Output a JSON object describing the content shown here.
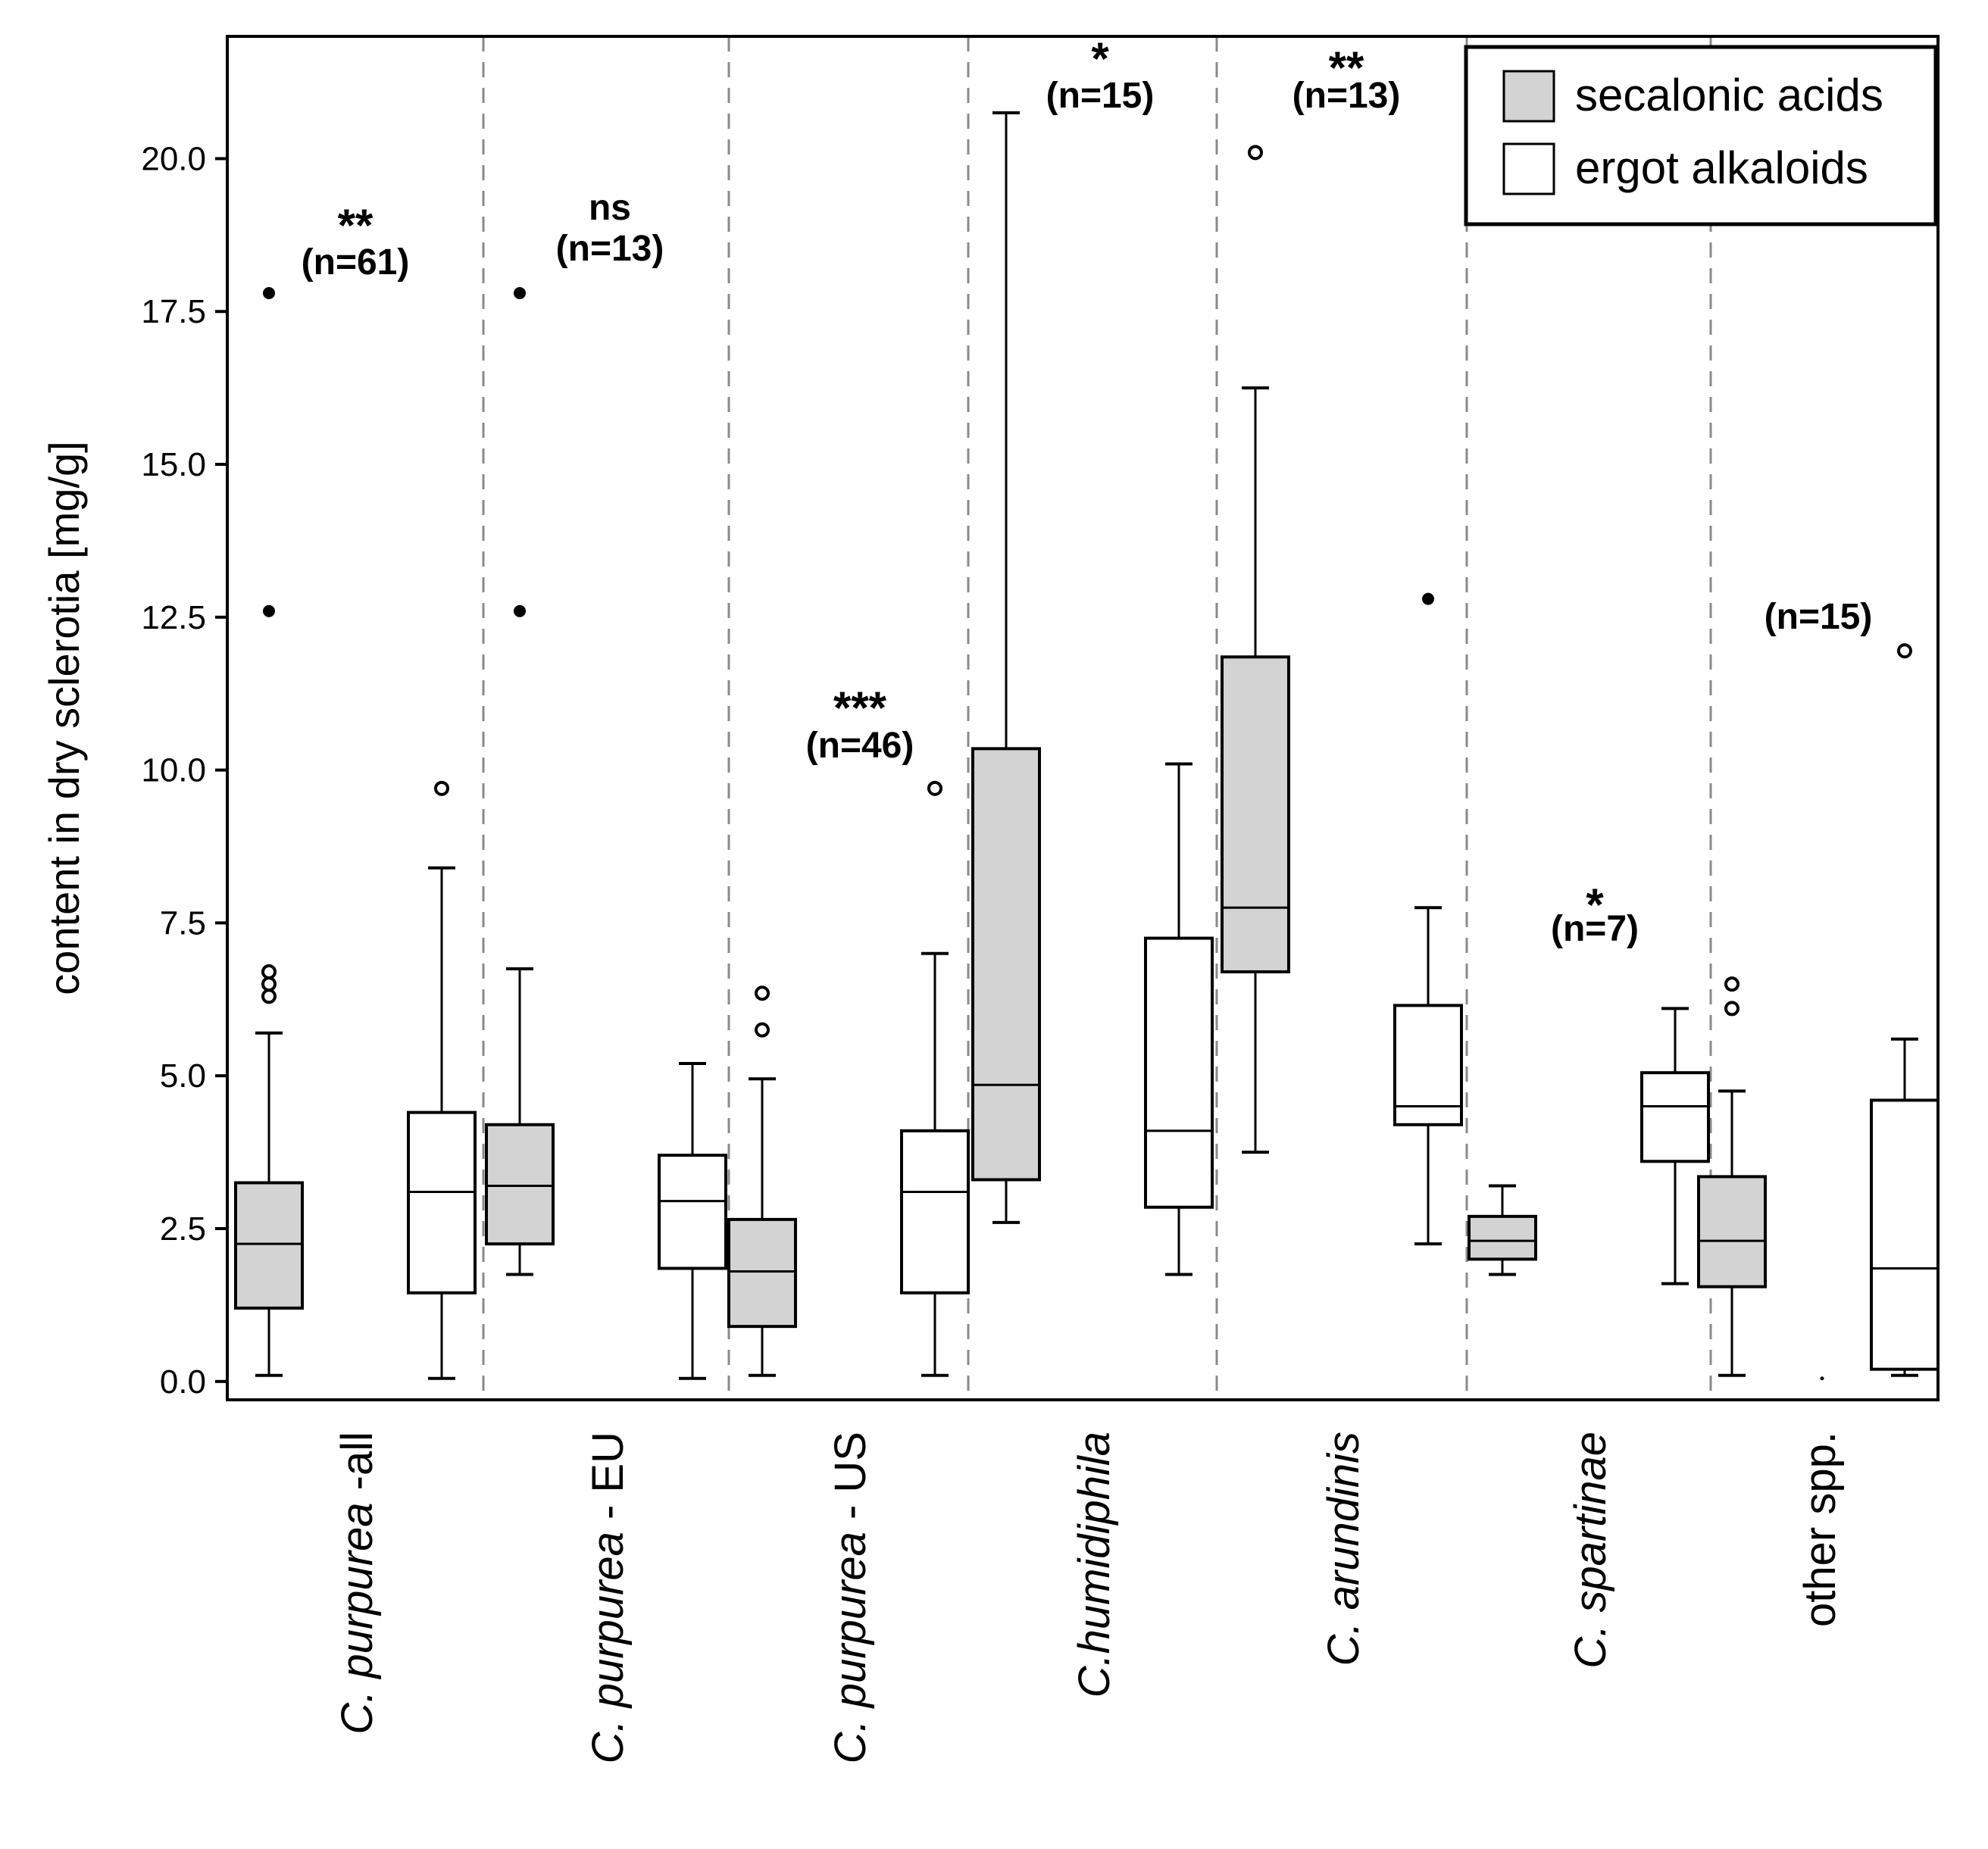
{
  "chart_data": {
    "type": "box",
    "ylabel": "content in dry sclerotia [mg/g]",
    "xlabel": "",
    "ylim": [
      -0.3,
      22.0
    ],
    "yticks": [
      "0.0",
      "2.5",
      "5.0",
      "7.5",
      "10.0",
      "12.5",
      "15.0",
      "17.5",
      "20.0"
    ],
    "ytick_values": [
      0,
      2.5,
      5,
      7.5,
      10,
      12.5,
      15,
      17.5,
      20
    ],
    "legend": {
      "placement": "top-right",
      "entries": [
        {
          "label": "secalonic acids",
          "fill": "#d3d3d3"
        },
        {
          "label": "ergot alkaloids",
          "fill": "#ffffff"
        }
      ]
    },
    "groups": [
      {
        "name_italic": "C. purpurea",
        "name_plain": " -all",
        "significance": "**",
        "n_label": "(n=61)",
        "boxes": [
          {
            "series": "secalonic acids",
            "whisker_low": 0.1,
            "q1": 1.2,
            "median": 2.25,
            "q3": 3.25,
            "whisker_high": 5.7,
            "outliers": [
              {
                "v": 6.3,
                "filled": false
              },
              {
                "v": 6.5,
                "filled": false
              },
              {
                "v": 6.7,
                "filled": false
              },
              {
                "v": 12.6,
                "filled": true
              },
              {
                "v": 17.8,
                "filled": true
              }
            ]
          },
          {
            "series": "ergot alkaloids",
            "whisker_low": 0.05,
            "q1": 1.45,
            "median": 3.1,
            "q3": 4.4,
            "whisker_high": 8.4,
            "outliers": [
              {
                "v": 9.7,
                "filled": false
              }
            ]
          }
        ]
      },
      {
        "name_italic": "C. purpurea",
        "name_plain": " - EU",
        "significance": "ns",
        "n_label": "(n=13)",
        "boxes": [
          {
            "series": "secalonic acids",
            "whisker_low": 1.75,
            "q1": 2.25,
            "median": 3.2,
            "q3": 4.2,
            "whisker_high": 6.75,
            "outliers": [
              {
                "v": 12.6,
                "filled": true
              },
              {
                "v": 17.8,
                "filled": true
              }
            ]
          },
          {
            "series": "ergot alkaloids",
            "whisker_low": 0.05,
            "q1": 1.85,
            "median": 2.95,
            "q3": 3.7,
            "whisker_high": 5.2,
            "outliers": []
          }
        ]
      },
      {
        "name_italic": "C. purpurea",
        "name_plain": " - US",
        "significance": "***",
        "n_label": "(n=46)",
        "boxes": [
          {
            "series": "secalonic acids",
            "whisker_low": 0.1,
            "q1": 0.9,
            "median": 1.8,
            "q3": 2.65,
            "whisker_high": 4.95,
            "outliers": [
              {
                "v": 5.75,
                "filled": false
              },
              {
                "v": 6.35,
                "filled": false
              }
            ]
          },
          {
            "series": "ergot alkaloids",
            "whisker_low": 0.1,
            "q1": 1.45,
            "median": 3.1,
            "q3": 4.1,
            "whisker_high": 7.0,
            "outliers": [
              {
                "v": 9.7,
                "filled": false
              }
            ]
          }
        ]
      },
      {
        "name_italic": "C.humidiphila",
        "name_plain": "",
        "significance": "*",
        "n_label": "(n=15)",
        "boxes": [
          {
            "series": "secalonic acids",
            "whisker_low": 2.6,
            "q1": 3.3,
            "median": 4.85,
            "q3": 10.35,
            "whisker_high": 20.75,
            "outliers": []
          },
          {
            "series": "ergot alkaloids",
            "whisker_low": 1.75,
            "q1": 2.85,
            "median": 4.1,
            "q3": 7.25,
            "whisker_high": 10.1,
            "outliers": []
          }
        ]
      },
      {
        "name_italic": "C. arundinis",
        "name_plain": "",
        "significance": "**",
        "n_label": "(n=13)",
        "boxes": [
          {
            "series": "secalonic acids",
            "whisker_low": 3.75,
            "q1": 6.7,
            "median": 7.75,
            "q3": 11.85,
            "whisker_high": 16.25,
            "outliers": [
              {
                "v": 20.1,
                "filled": false
              }
            ]
          },
          {
            "series": "ergot alkaloids",
            "whisker_low": 2.25,
            "q1": 4.2,
            "median": 4.5,
            "q3": 6.15,
            "whisker_high": 7.75,
            "outliers": [
              {
                "v": 12.8,
                "filled": true
              }
            ]
          }
        ]
      },
      {
        "name_italic": "C. spartinae",
        "name_plain": "",
        "significance": "*",
        "n_label": "(n=7)",
        "boxes": [
          {
            "series": "secalonic acids",
            "whisker_low": 1.75,
            "q1": 2.0,
            "median": 2.3,
            "q3": 2.7,
            "whisker_high": 3.2,
            "outliers": []
          },
          {
            "series": "ergot alkaloids",
            "whisker_low": 1.6,
            "q1": 3.6,
            "median": 4.5,
            "q3": 5.05,
            "whisker_high": 6.1,
            "outliers": []
          }
        ]
      },
      {
        "name_italic": "",
        "name_plain": "other spp.",
        "significance": "",
        "n_label": "(n=15)",
        "boxes": [
          {
            "series": "secalonic acids",
            "whisker_low": 0.1,
            "q1": 1.55,
            "median": 2.3,
            "q3": 3.35,
            "whisker_high": 4.75,
            "outliers": [
              {
                "v": 6.1,
                "filled": false
              },
              {
                "v": 6.5,
                "filled": false
              }
            ]
          },
          {
            "series": "ergot alkaloids",
            "whisker_low": 0.1,
            "q1": 0.2,
            "median": 1.85,
            "q3": 4.6,
            "whisker_high": 5.6,
            "outliers": [
              {
                "v": 11.95,
                "filled": false
              }
            ]
          }
        ]
      }
    ]
  }
}
